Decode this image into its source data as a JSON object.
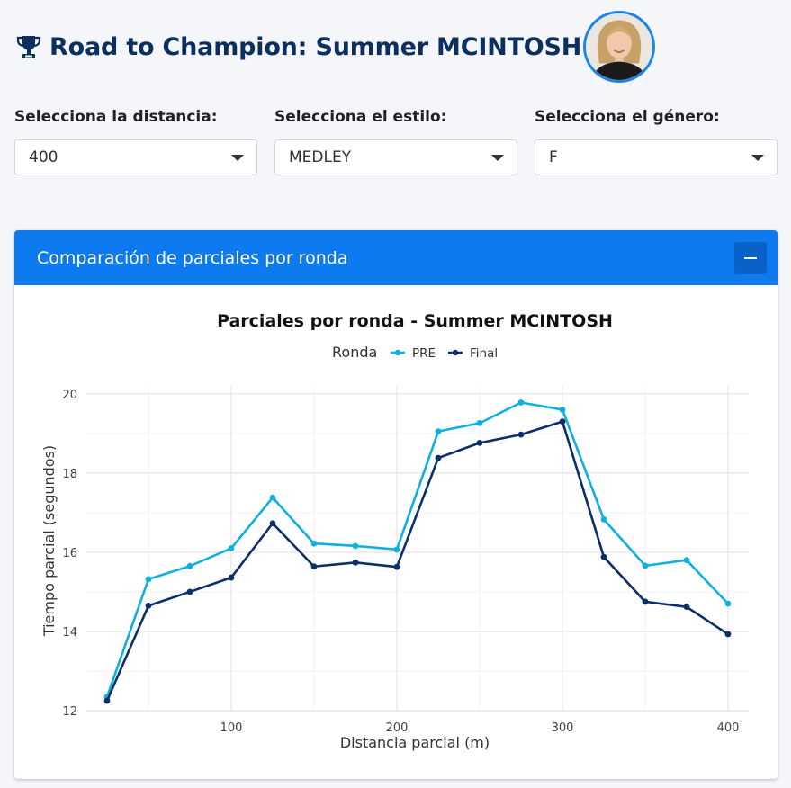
{
  "header": {
    "title": "Road to Champion: Summer MCINTOSH",
    "icon": "trophy-icon",
    "avatar": "athlete-avatar"
  },
  "filters": [
    {
      "label": "Selecciona la distancia:",
      "value": "400"
    },
    {
      "label": "Selecciona el estilo:",
      "value": "MEDLEY"
    },
    {
      "label": "Selecciona el género:",
      "value": "F"
    }
  ],
  "card": {
    "title": "Comparación de parciales por ronda",
    "collapse_icon": "minus-icon"
  },
  "colors": {
    "accent": "#0d7af0",
    "title": "#0b2f5e",
    "pre": "#0fb0e0",
    "final": "#0b2f6a"
  },
  "chart_data": {
    "type": "line",
    "title": "Parciales por ronda - Summer MCINTOSH",
    "xlabel": "Distancia parcial (m)",
    "ylabel": "Tiempo parcial (segundos)",
    "legend_title": "Ronda",
    "legend_position": "top",
    "grid": true,
    "xlim": [
      12.5,
      412.5
    ],
    "ylim": [
      12,
      20.2
    ],
    "x_ticks": [
      100,
      200,
      300,
      400
    ],
    "y_ticks": [
      12,
      14,
      16,
      18,
      20
    ],
    "x": [
      25,
      50,
      75,
      100,
      125,
      150,
      175,
      200,
      225,
      250,
      275,
      300,
      325,
      350,
      375,
      400
    ],
    "series": [
      {
        "name": "PRE",
        "color": "#0fb0e0",
        "values": [
          12.35,
          15.32,
          15.65,
          16.1,
          17.38,
          16.22,
          16.16,
          16.07,
          19.05,
          19.26,
          19.78,
          19.6,
          16.83,
          15.66,
          15.8,
          14.7
        ]
      },
      {
        "name": "Final",
        "color": "#0b2f6a",
        "values": [
          12.25,
          14.65,
          15.0,
          15.36,
          16.73,
          15.64,
          15.74,
          15.63,
          18.38,
          18.76,
          18.97,
          19.3,
          15.88,
          14.75,
          14.62,
          13.93
        ]
      }
    ]
  }
}
